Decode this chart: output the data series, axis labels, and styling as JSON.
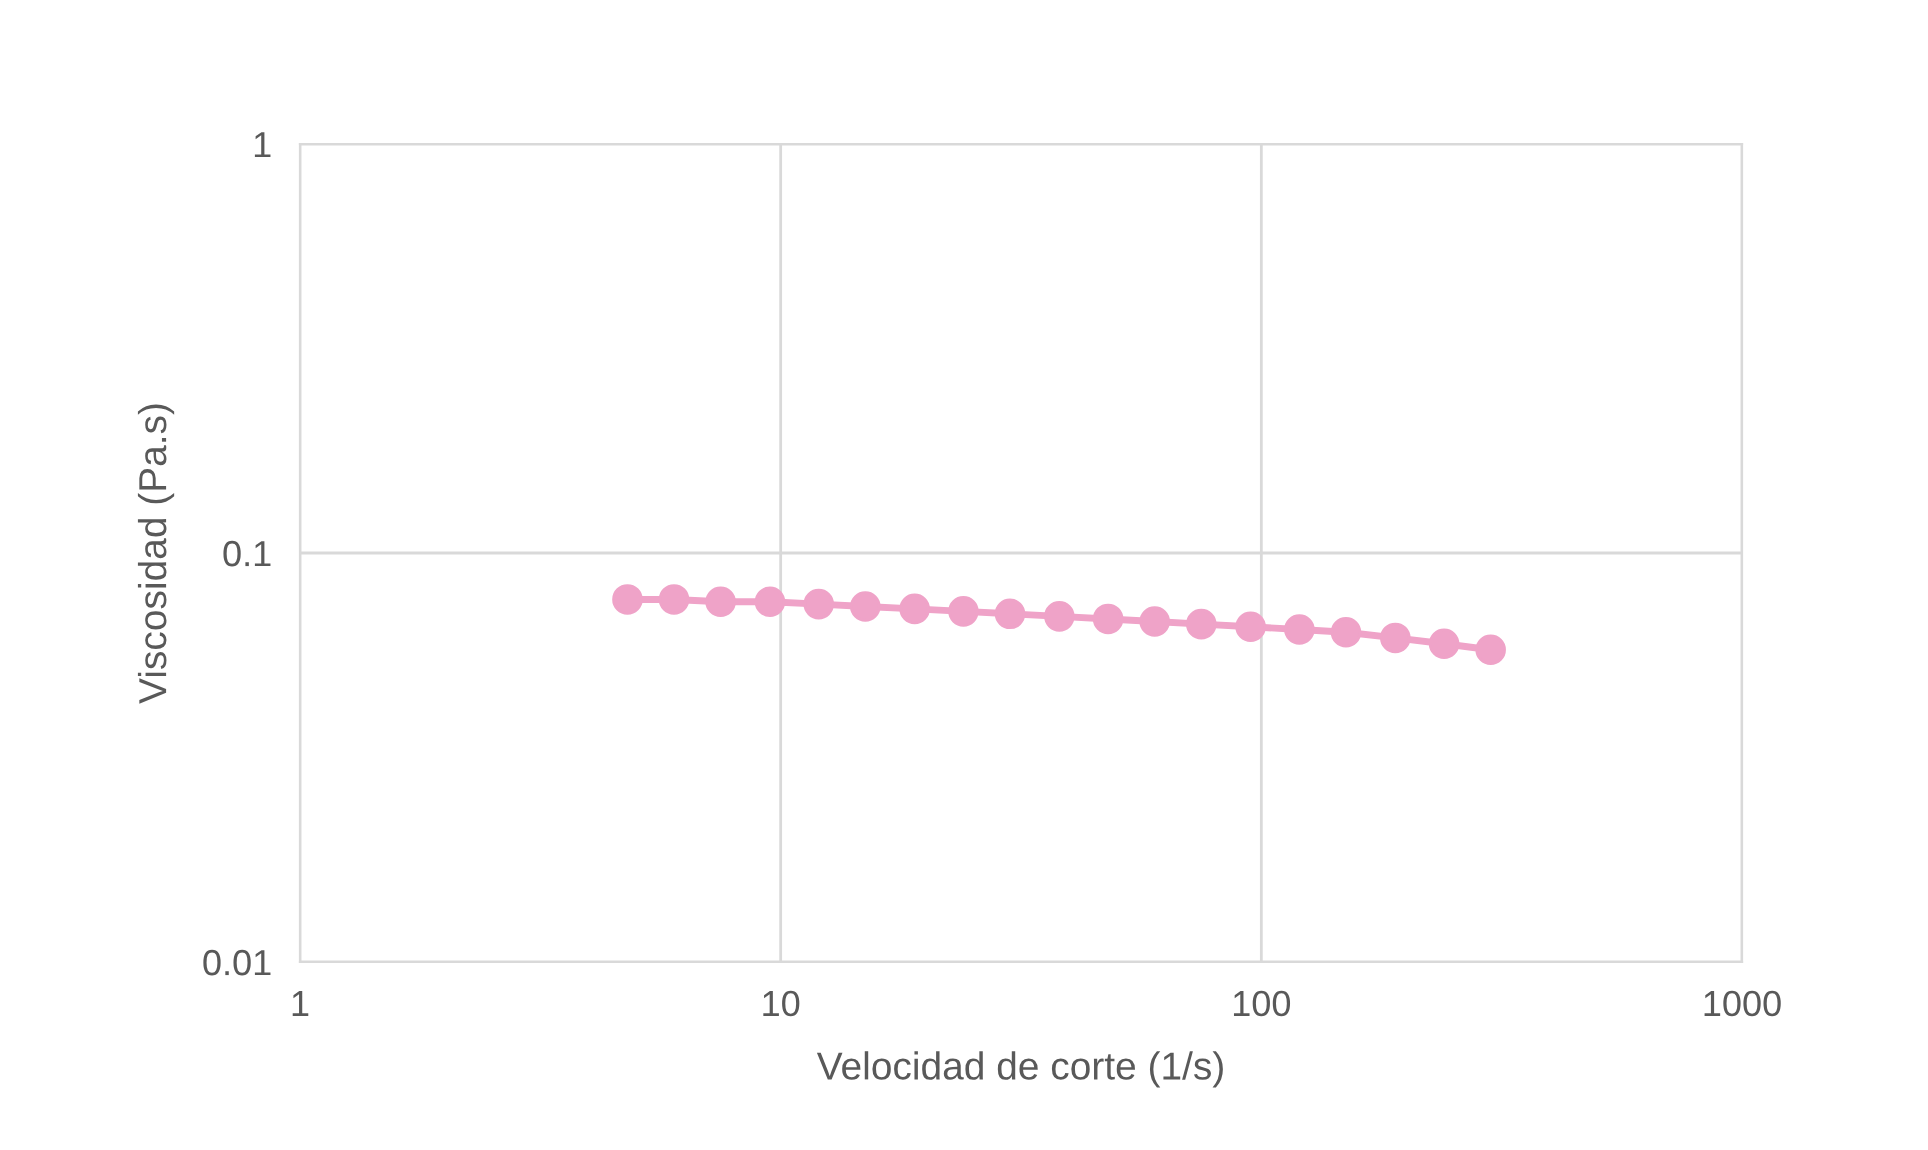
{
  "chart_data": {
    "type": "line",
    "xlabel": "Velocidad de corte (1/s)",
    "ylabel": "Viscosidad (Pa.s)",
    "x": [
      4.8,
      6,
      7.5,
      9.5,
      12,
      15,
      19,
      24,
      30,
      38,
      48,
      60,
      75,
      95,
      120,
      150,
      190,
      240,
      300
    ],
    "series": [
      {
        "color": "#efa3c8",
        "values": [
          0.077,
          0.077,
          0.076,
          0.076,
          0.075,
          0.074,
          0.073,
          0.072,
          0.071,
          0.07,
          0.069,
          0.068,
          0.067,
          0.066,
          0.065,
          0.064,
          0.062,
          0.06,
          0.058
        ]
      }
    ],
    "log": "xy",
    "xlim": [
      1,
      1000
    ],
    "ylim": [
      0.01,
      1
    ],
    "xticks": [
      1,
      10,
      100,
      1000
    ],
    "yticks": [
      0.01,
      0.1,
      1
    ],
    "grid": true,
    "marker": "circle",
    "line_style": "solid",
    "legend": false
  }
}
